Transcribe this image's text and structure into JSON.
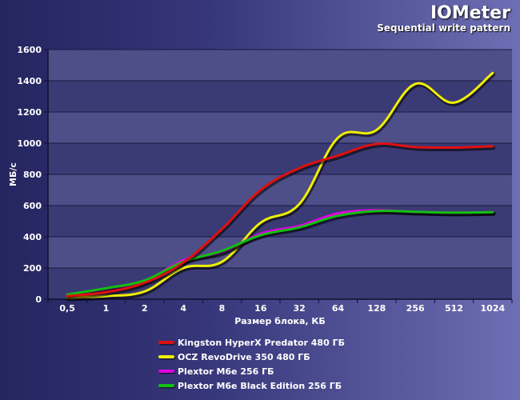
{
  "chart_data": {
    "type": "line",
    "title": "IOMeter",
    "subtitle": "Sequential write pattern",
    "xlabel": "Размер блока, КБ",
    "ylabel": "МБ/с",
    "categories": [
      "0,5",
      "1",
      "2",
      "4",
      "8",
      "16",
      "32",
      "64",
      "128",
      "256",
      "512",
      "1024"
    ],
    "ylim": [
      0,
      1600
    ],
    "yticks": [
      0,
      200,
      400,
      600,
      800,
      1000,
      1200,
      1400,
      1600
    ],
    "grid": true,
    "legend_position": "bottom",
    "series": [
      {
        "name": "Kingston HyperX Predator 480 ГБ",
        "color": "#e01010",
        "values": [
          20,
          45,
          105,
          235,
          450,
          700,
          840,
          920,
          995,
          975,
          972,
          980
        ]
      },
      {
        "name": "OCZ RevoDrive 350 480 ГБ",
        "color": "#f0f000",
        "values": [
          10,
          20,
          50,
          200,
          240,
          490,
          610,
          1035,
          1085,
          1380,
          1260,
          1450
        ]
      },
      {
        "name": "Plextor M6e 256 ГБ",
        "color": "#e000e0",
        "values": [
          30,
          65,
          115,
          250,
          300,
          420,
          470,
          550,
          570,
          560,
          555,
          558
        ]
      },
      {
        "name": "Plextor M6e Black Edition 256 ГБ",
        "color": "#10c010",
        "values": [
          30,
          70,
          120,
          240,
          310,
          410,
          460,
          535,
          565,
          560,
          555,
          558
        ]
      }
    ]
  }
}
